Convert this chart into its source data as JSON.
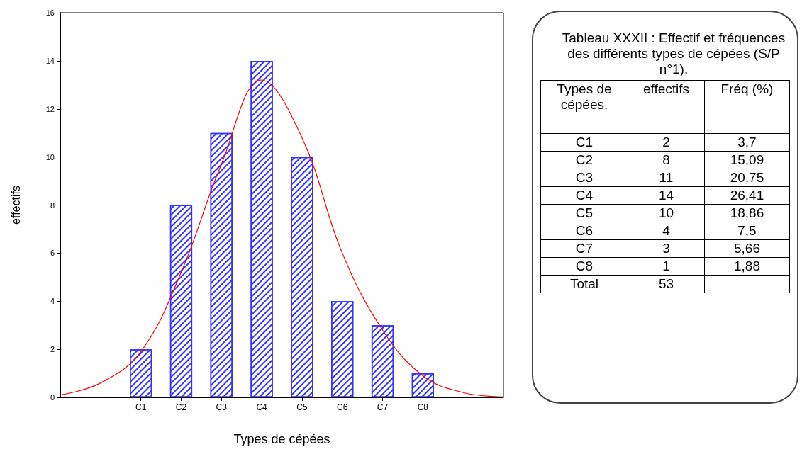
{
  "chart_data": [
    {
      "type": "bar",
      "xlabel": "Types de cépées",
      "ylabel": "effectifs",
      "categories": [
        null,
        null,
        "C1",
        "C2",
        "C3",
        "C4",
        "C5",
        "C6",
        "C7",
        "C8",
        null,
        null
      ],
      "ylim": [
        0,
        16
      ],
      "yticks": [
        0,
        2,
        4,
        6,
        8,
        10,
        12,
        14,
        16
      ],
      "grid": false,
      "marker": "none",
      "line_style": "solid",
      "series": [
        {
          "type": "bar",
          "color": "#3333ff",
          "values": [
            null,
            null,
            2,
            8,
            11,
            14,
            10,
            4,
            3,
            1,
            null,
            null
          ]
        },
        {
          "type": "line",
          "color": "#ff0000",
          "values": [
            0.1,
            0.6,
            1.9,
            5.2,
            9.7,
            13.2,
            10.8,
            6,
            2.8,
            0.9,
            0.2,
            0.02
          ]
        }
      ]
    },
    {
      "type": "other",
      "title": "Tableau XXXII : Effectif et fréquences des différents types de cépées (S/P n°1).",
      "xlabel": "Types de cépées.",
      "data_labels": true,
      "categories": [
        "C1",
        "C2",
        "C3",
        "C4",
        "C5",
        "C6",
        "C7",
        "C8",
        "Total"
      ],
      "series": [
        {
          "name": "effectifs",
          "values": [
            2,
            8,
            11,
            14,
            10,
            4,
            3,
            1,
            53
          ]
        },
        {
          "name": "Fréq (%)",
          "values": [
            3.7,
            15.09,
            20.75,
            26.41,
            18.86,
            7.5,
            5.66,
            1.88,
            null
          ],
          "value_labels": [
            "3,7",
            "15,09",
            "20,75",
            "26,41",
            "18,86",
            "7,5",
            "5,66",
            "1,88",
            null
          ]
        }
      ]
    }
  ]
}
